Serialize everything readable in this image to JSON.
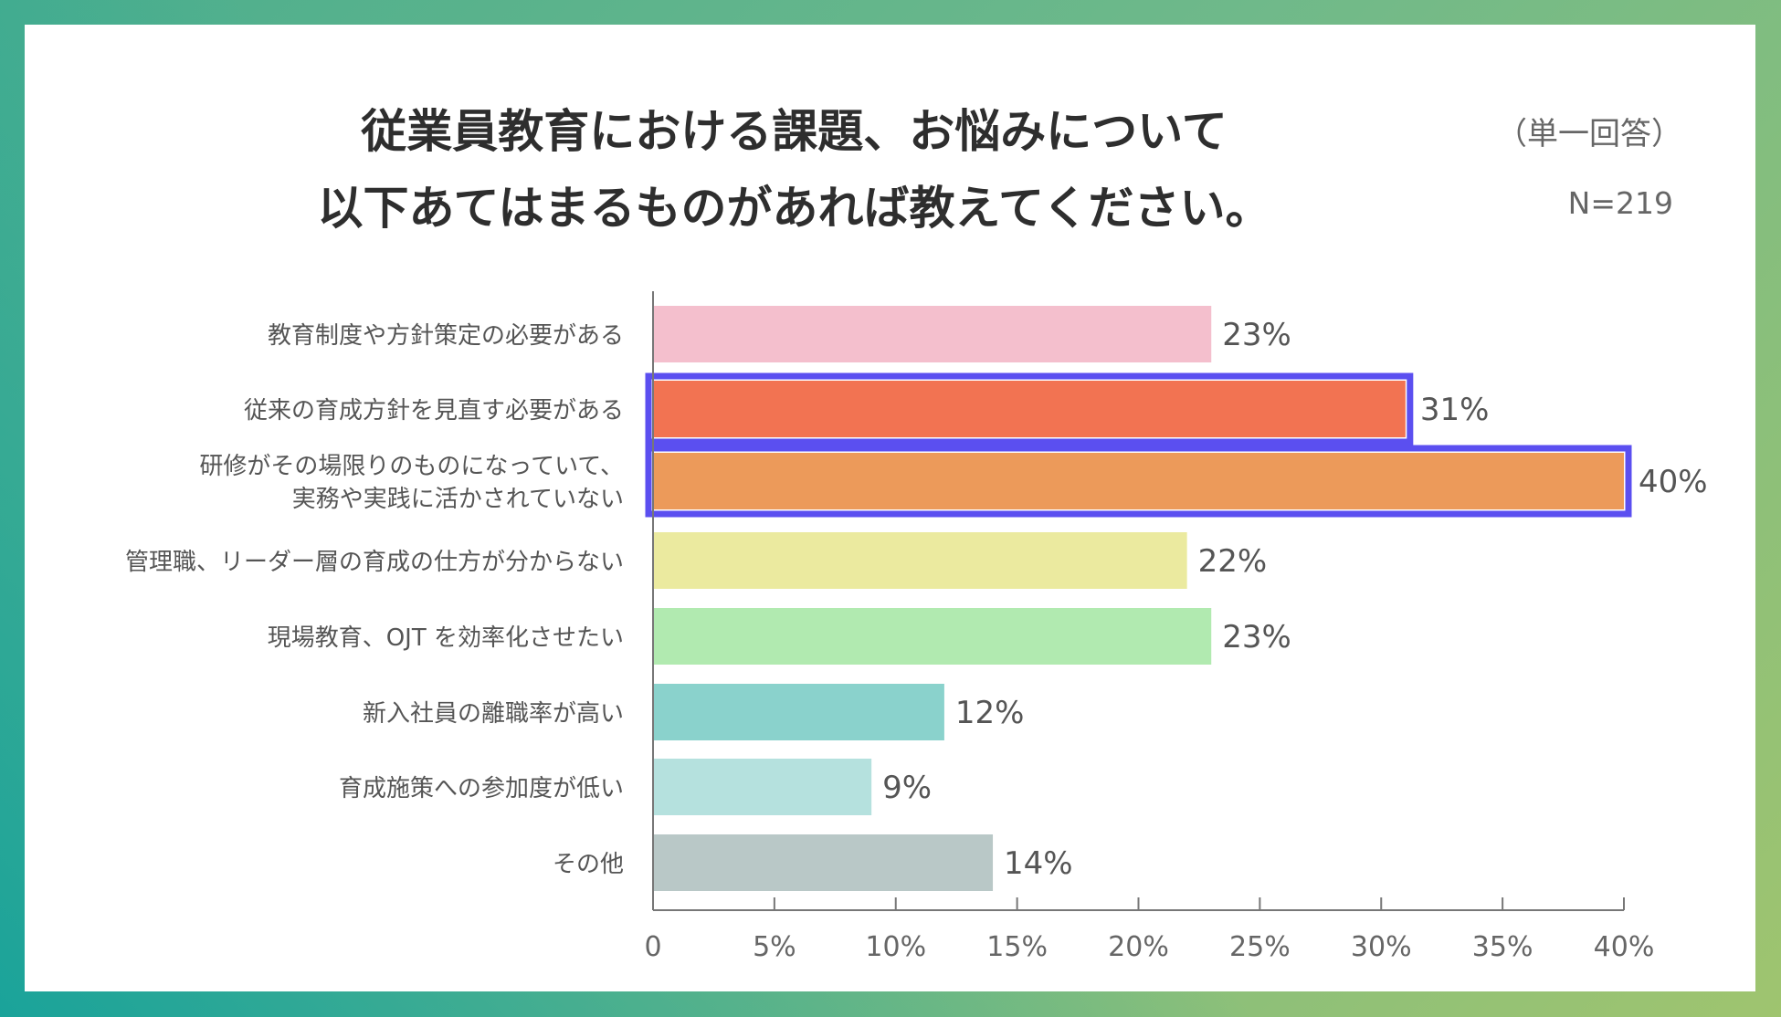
{
  "title_lines": [
    "従業員教育における課題、お悩みについて",
    "以下あてはまるものがあれば教えてください。"
  ],
  "answer_type": "（単一回答）",
  "sample_size": "N=219",
  "chart_data": {
    "type": "bar",
    "orientation": "horizontal",
    "title": "従業員教育における課題、お悩みについて 以下あてはまるものがあれば教えてください。",
    "categories": [
      [
        "教育制度や方針策定の必要がある"
      ],
      [
        "従来の育成方針を見直す必要がある"
      ],
      [
        "研修がその場限りのものになっていて、",
        "実務や実践に活かされていない"
      ],
      [
        "管理職、リーダー層の育成の仕方が分からない"
      ],
      [
        "現場教育、OJT を効率化させたい"
      ],
      [
        "新入社員の離職率が高い"
      ],
      [
        "育成施策への参加度が低い"
      ],
      [
        "その他"
      ]
    ],
    "values": [
      23,
      31,
      40,
      22,
      23,
      12,
      9,
      14
    ],
    "value_labels": [
      "23%",
      "31%",
      "40%",
      "22%",
      "23%",
      "12%",
      "9%",
      "14%"
    ],
    "colors": [
      "#f4bfcd",
      "#f27352",
      "#ec9a5a",
      "#ebea9f",
      "#b1eab0",
      "#8ad2cc",
      "#b5e1de",
      "#b9c8c7"
    ],
    "highlighted": [
      false,
      true,
      true,
      false,
      false,
      false,
      false,
      false
    ],
    "highlight_color": "#5b4ff0",
    "xlim": [
      0,
      40
    ],
    "xticks": [
      0,
      5,
      10,
      15,
      20,
      25,
      30,
      35,
      40
    ],
    "xtick_labels": [
      "0",
      "5%",
      "10%",
      "15%",
      "20%",
      "25%",
      "30%",
      "35%",
      "40%"
    ],
    "xlabel": "",
    "ylabel": "",
    "grid": false,
    "legend": "none"
  }
}
